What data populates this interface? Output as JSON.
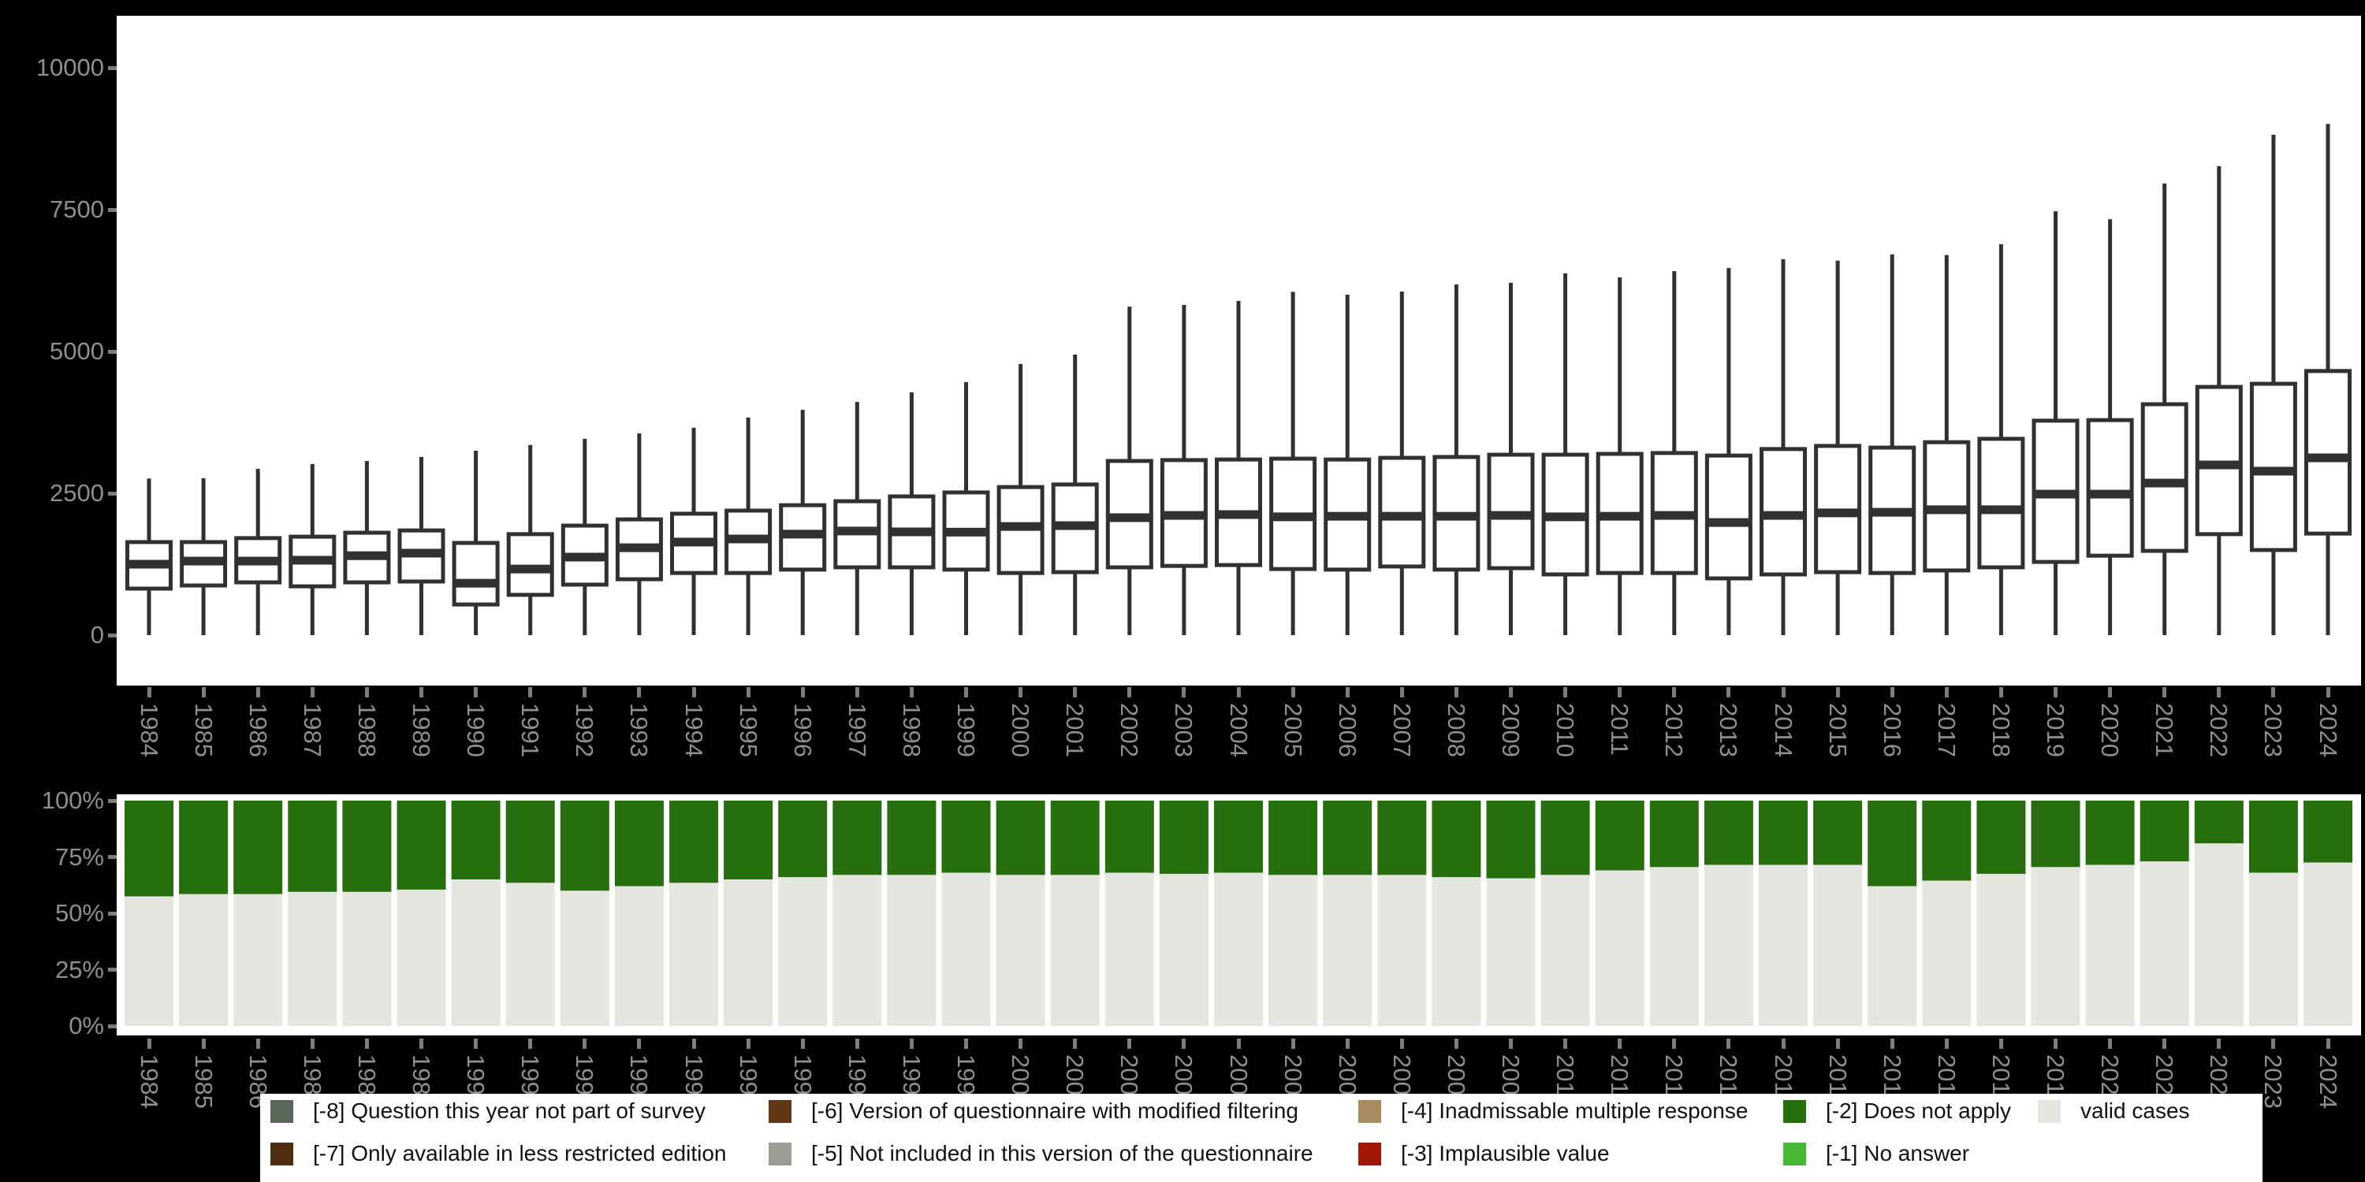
{
  "page": {
    "background": "#000000"
  },
  "years": [
    "1984",
    "1985",
    "1986",
    "1987",
    "1988",
    "1989",
    "1990",
    "1991",
    "1992",
    "1993",
    "1994",
    "1995",
    "1996",
    "1997",
    "1998",
    "1999",
    "2000",
    "2001",
    "2002",
    "2003",
    "2004",
    "2005",
    "2006",
    "2007",
    "2008",
    "2009",
    "2010",
    "2011",
    "2012",
    "2013",
    "2014",
    "2015",
    "2016",
    "2017",
    "2018",
    "2019",
    "2020",
    "2021",
    "2022",
    "2023",
    "2024"
  ],
  "chart_data": [
    {
      "type": "boxplot",
      "title": "",
      "xlabel": "",
      "ylabel": "",
      "ylim": [
        0,
        10400
      ],
      "yticks": [
        0,
        2500,
        5000,
        7500,
        10000
      ],
      "y_tick_labels": [
        "0",
        "2500",
        "5000",
        "7500",
        "10000"
      ],
      "grid": "off",
      "box_color": "#313131",
      "box_fill": "#ffffff",
      "categories": [
        1984,
        1985,
        1986,
        1987,
        1988,
        1989,
        1990,
        1991,
        1992,
        1993,
        1994,
        1995,
        1996,
        1997,
        1998,
        1999,
        2000,
        2001,
        2002,
        2003,
        2004,
        2005,
        2006,
        2007,
        2008,
        2009,
        2010,
        2011,
        2012,
        2013,
        2014,
        2015,
        2016,
        2017,
        2018,
        2019,
        2020,
        2021,
        2022,
        2023,
        2024
      ],
      "stats_order": [
        "min",
        "q1",
        "median",
        "q3",
        "max"
      ],
      "stats": [
        [
          0,
          820,
          1250,
          1640,
          2760
        ],
        [
          0,
          875,
          1305,
          1640,
          2765
        ],
        [
          0,
          930,
          1305,
          1710,
          2930
        ],
        [
          0,
          860,
          1320,
          1735,
          3015
        ],
        [
          0,
          930,
          1400,
          1805,
          3070
        ],
        [
          0,
          945,
          1445,
          1845,
          3140
        ],
        [
          0,
          540,
          915,
          1625,
          3250
        ],
        [
          0,
          710,
          1165,
          1780,
          3350
        ],
        [
          0,
          890,
          1375,
          1930,
          3460
        ],
        [
          0,
          985,
          1540,
          2040,
          3555
        ],
        [
          0,
          1095,
          1640,
          2140,
          3655
        ],
        [
          0,
          1095,
          1695,
          2195,
          3835
        ],
        [
          0,
          1155,
          1780,
          2290,
          3970
        ],
        [
          0,
          1195,
          1835,
          2360,
          4110
        ],
        [
          0,
          1195,
          1820,
          2445,
          4280
        ],
        [
          0,
          1155,
          1815,
          2515,
          4460
        ],
        [
          0,
          1095,
          1915,
          2610,
          4780
        ],
        [
          0,
          1110,
          1930,
          2655,
          4945
        ],
        [
          0,
          1195,
          2070,
          3070,
          5790
        ],
        [
          0,
          1220,
          2110,
          3085,
          5820
        ],
        [
          0,
          1235,
          2125,
          3095,
          5890
        ],
        [
          0,
          1165,
          2085,
          3110,
          6050
        ],
        [
          0,
          1155,
          2095,
          3095,
          6000
        ],
        [
          0,
          1210,
          2095,
          3125,
          6055
        ],
        [
          0,
          1155,
          2095,
          3140,
          6180
        ],
        [
          0,
          1180,
          2110,
          3180,
          6210
        ],
        [
          0,
          1070,
          2085,
          3180,
          6375
        ],
        [
          0,
          1095,
          2095,
          3195,
          6305
        ],
        [
          0,
          1095,
          2110,
          3210,
          6415
        ],
        [
          0,
          1000,
          1985,
          3165,
          6470
        ],
        [
          0,
          1070,
          2110,
          3280,
          6625
        ],
        [
          0,
          1110,
          2155,
          3335,
          6600
        ],
        [
          0,
          1095,
          2165,
          3305,
          6710
        ],
        [
          0,
          1140,
          2210,
          3400,
          6700
        ],
        [
          0,
          1195,
          2210,
          3460,
          6890
        ],
        [
          0,
          1290,
          2485,
          3780,
          7470
        ],
        [
          0,
          1400,
          2485,
          3790,
          7330
        ],
        [
          0,
          1485,
          2680,
          4070,
          7960
        ],
        [
          0,
          1780,
          3000,
          4375,
          8265
        ],
        [
          0,
          1500,
          2890,
          4430,
          8820
        ],
        [
          0,
          1790,
          3125,
          4655,
          9010
        ]
      ]
    },
    {
      "type": "bar",
      "subtype": "stacked-percentage",
      "title": "",
      "xlabel": "",
      "ylabel": "",
      "ylim": [
        0,
        100
      ],
      "yticks": [
        0,
        25,
        50,
        75,
        100
      ],
      "y_tick_labels": [
        "0%",
        "25%",
        "50%",
        "75%",
        "100%"
      ],
      "grid": "off",
      "categories": [
        1984,
        1985,
        1986,
        1987,
        1988,
        1989,
        1990,
        1991,
        1992,
        1993,
        1994,
        1995,
        1996,
        1997,
        1998,
        1999,
        2000,
        2001,
        2002,
        2003,
        2004,
        2005,
        2006,
        2007,
        2008,
        2009,
        2010,
        2011,
        2012,
        2013,
        2014,
        2015,
        2016,
        2017,
        2018,
        2019,
        2020,
        2021,
        2022,
        2023,
        2024
      ],
      "series": [
        {
          "name": "valid cases",
          "color": "#e3e7e0",
          "values": [
            57.5,
            58.5,
            58.5,
            59.5,
            59.5,
            60.5,
            65,
            63.5,
            60,
            62,
            63.5,
            65,
            66,
            67,
            67,
            68,
            67,
            67,
            68,
            67.5,
            68,
            67,
            67,
            67,
            66,
            65.5,
            67,
            69,
            70.5,
            71.5,
            71.5,
            71.5,
            62,
            64.5,
            67.5,
            70.5,
            71.5,
            73,
            81,
            68,
            72.5
          ]
        },
        {
          "name": "[-2] Does not apply",
          "color": "#276e0f",
          "values": [
            42.5,
            41.5,
            41.5,
            40.5,
            40.5,
            39.5,
            35,
            36.5,
            40,
            38,
            36.5,
            35,
            34,
            33,
            33,
            32,
            33,
            33,
            32,
            32.5,
            32,
            33,
            33,
            33,
            34,
            34.5,
            33,
            31,
            29.5,
            28.5,
            28.5,
            28.5,
            38,
            35.5,
            32.5,
            29.5,
            28.5,
            27,
            19,
            32,
            27.5
          ]
        }
      ]
    }
  ],
  "legend": {
    "items": [
      {
        "label": "[-8] Question this year not part of survey",
        "color": "#5a685c"
      },
      {
        "label": "[-6] Version of questionnaire with modified filtering",
        "color": "#603818"
      },
      {
        "label": "[-4] Inadmissable multiple response",
        "color": "#a88a5e"
      },
      {
        "label": "[-2] Does not apply",
        "color": "#276e0f"
      },
      {
        "label": "valid cases",
        "color": "#e3e7e0"
      },
      {
        "label": "[-7] Only available in less restricted edition",
        "color": "#502d0e"
      },
      {
        "label": "[-5] Not included in this version of the questionnaire",
        "color": "#9c9c94"
      },
      {
        "label": "[-3] Implausible value",
        "color": "#a31505"
      },
      {
        "label": "[-1] No answer",
        "color": "#4ab837"
      }
    ]
  }
}
